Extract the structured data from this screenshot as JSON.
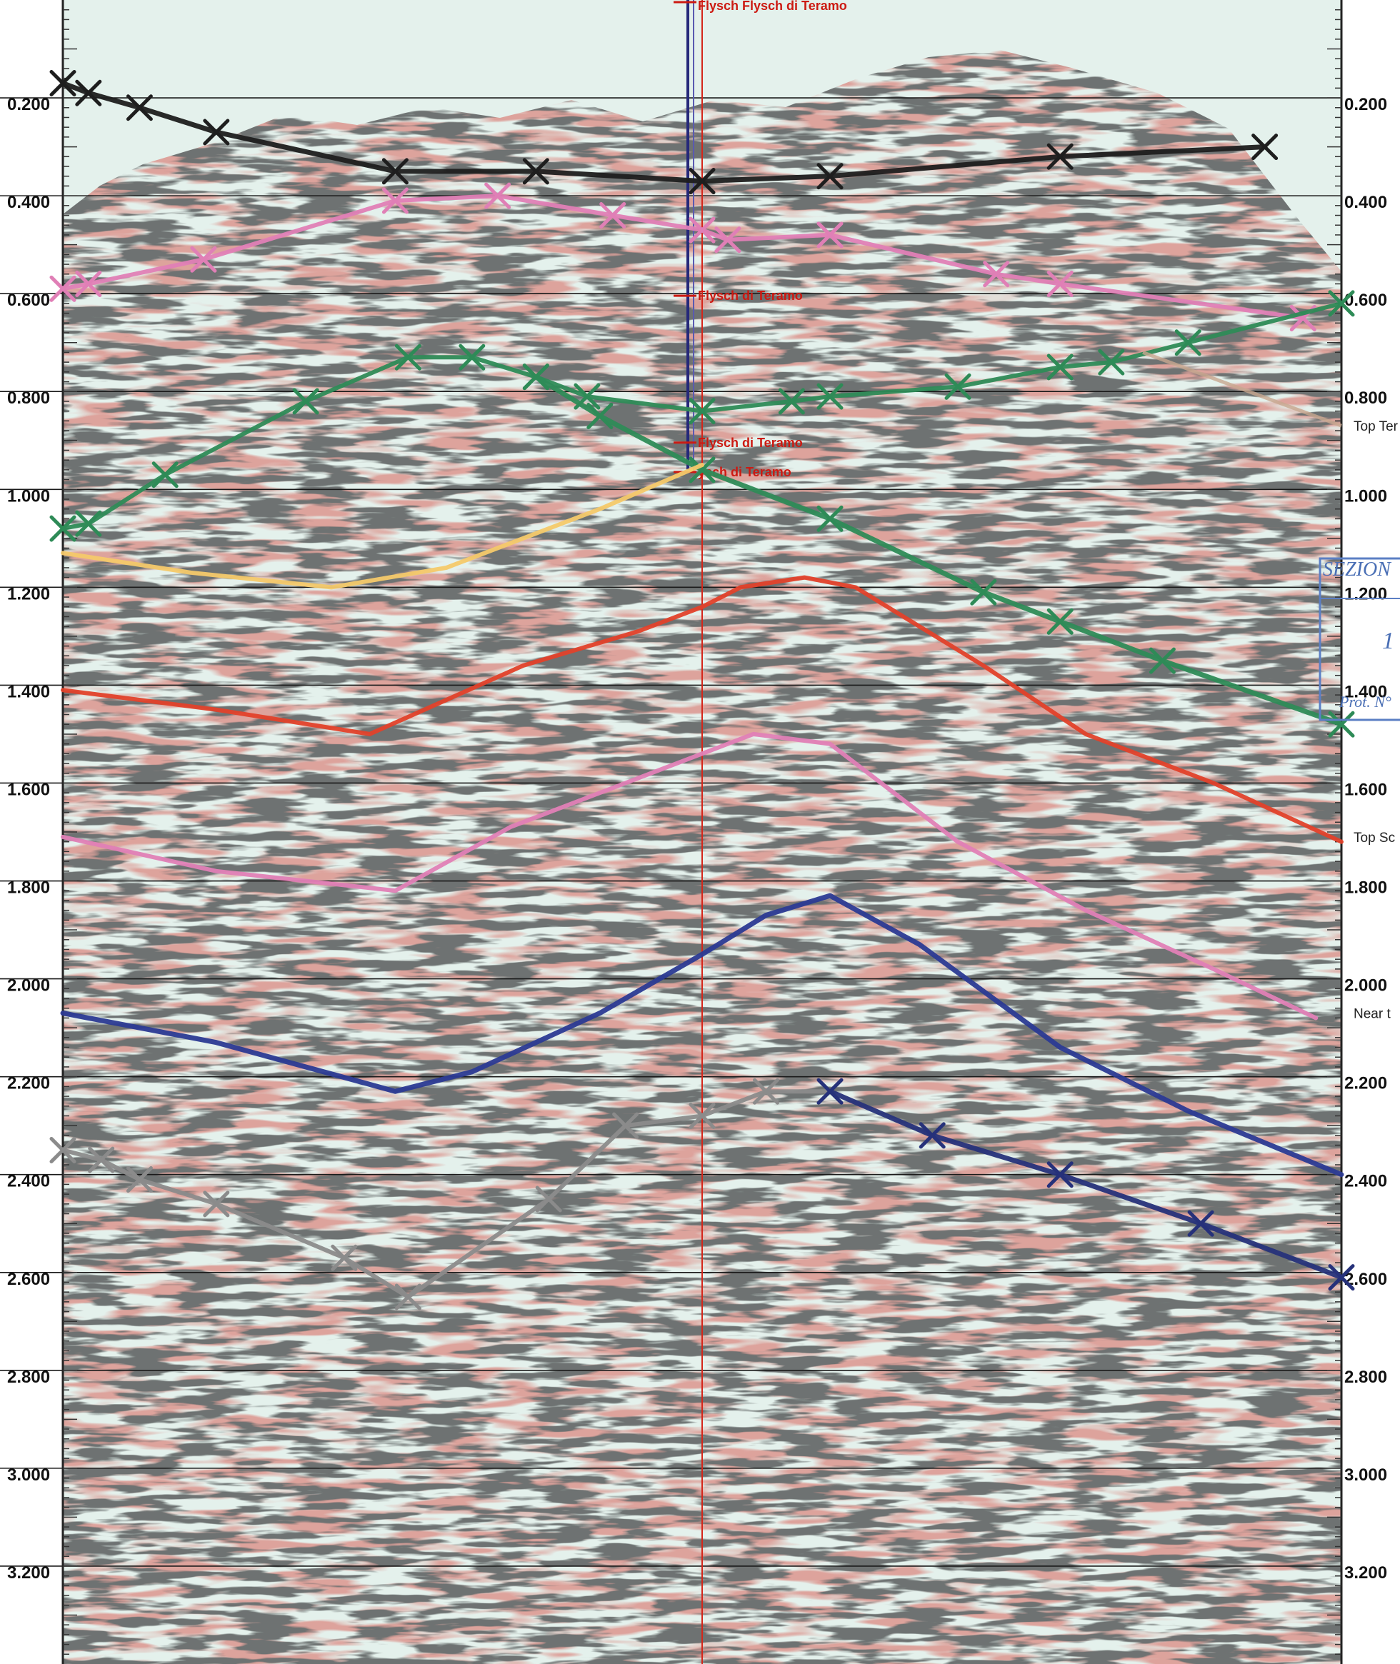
{
  "chart_data": {
    "type": "line",
    "title": "",
    "xlabel": "",
    "ylabel": "",
    "y_unit": "two-way time (s)",
    "ylim": [
      0.0,
      3.4
    ],
    "xlim": [
      0,
      1
    ],
    "y_reversed": true,
    "y_ticks": [
      "0.200",
      "0.400",
      "0.600",
      "0.800",
      "1.000",
      "1.200",
      "1.400",
      "1.600",
      "1.800",
      "2.000",
      "2.200",
      "2.400",
      "2.600",
      "2.800",
      "3.000",
      "3.200"
    ],
    "grid": true,
    "well": {
      "x": 0.5,
      "labels": [
        {
          "text": "Flysch Flysch di Teramo",
          "y": 0.0
        },
        {
          "text": "Flysch di Teramo",
          "y": 0.6
        },
        {
          "text": "Flysch di Teramo",
          "y": 0.9
        },
        {
          "text": "ysch di Teramo",
          "y": 0.96
        }
      ]
    },
    "right_annotations": [
      {
        "text": "Top Ter",
        "y": 0.87
      },
      {
        "text": "Top Sc",
        "y": 1.71
      },
      {
        "text": "Near t",
        "y": 2.07
      }
    ],
    "stamp": {
      "lines": [
        "SEZION",
        "1",
        "Prot. N°"
      ]
    },
    "series": [
      {
        "color": "#1e1e1e",
        "markers": "x",
        "x": [
          0.0,
          0.02,
          0.06,
          0.12,
          0.26,
          0.37,
          0.5,
          0.6,
          0.78,
          0.94
        ],
        "y": [
          0.17,
          0.19,
          0.22,
          0.27,
          0.35,
          0.35,
          0.37,
          0.36,
          0.32,
          0.3
        ]
      },
      {
        "color": "#e07fb6",
        "markers": "x",
        "x": [
          0.0,
          0.02,
          0.11,
          0.26,
          0.34,
          0.43,
          0.5,
          0.52,
          0.6,
          0.73,
          0.78,
          0.97
        ],
        "y": [
          0.59,
          0.58,
          0.53,
          0.41,
          0.4,
          0.44,
          0.47,
          0.49,
          0.48,
          0.56,
          0.58,
          0.65
        ]
      },
      {
        "color": "#2e8b57",
        "markers": "x",
        "x": [
          0.0,
          0.02,
          0.08,
          0.19,
          0.27,
          0.32,
          0.37,
          0.41,
          0.5,
          0.57,
          0.6,
          0.7,
          0.78,
          0.82,
          0.88,
          1.0
        ],
        "y": [
          1.08,
          1.07,
          0.97,
          0.82,
          0.73,
          0.73,
          0.77,
          0.81,
          0.84,
          0.82,
          0.81,
          0.79,
          0.75,
          0.74,
          0.7,
          0.62
        ]
      },
      {
        "color": "#2e8b57",
        "markers": "x",
        "x": [
          0.37,
          0.42,
          0.5,
          0.6,
          0.72,
          0.78,
          0.86,
          1.0
        ],
        "y": [
          0.77,
          0.85,
          0.96,
          1.06,
          1.21,
          1.27,
          1.35,
          1.48
        ]
      },
      {
        "color": "#f4c96a",
        "markers": "none",
        "x": [
          0.0,
          0.1,
          0.21,
          0.3,
          0.42,
          0.5
        ],
        "y": [
          1.13,
          1.17,
          1.2,
          1.16,
          1.04,
          0.95
        ]
      },
      {
        "color": "#e1412a",
        "markers": "none",
        "x": [
          0.0,
          0.12,
          0.24,
          0.36,
          0.45,
          0.5,
          0.53,
          0.58,
          0.62,
          0.72,
          0.8,
          0.9,
          1.0
        ],
        "y": [
          1.41,
          1.45,
          1.5,
          1.36,
          1.29,
          1.24,
          1.2,
          1.18,
          1.2,
          1.36,
          1.5,
          1.6,
          1.72
        ]
      },
      {
        "color": "#e07fb6",
        "markers": "none",
        "x": [
          0.0,
          0.12,
          0.26,
          0.35,
          0.45,
          0.54,
          0.6,
          0.7,
          0.8,
          0.9,
          0.98
        ],
        "y": [
          1.71,
          1.78,
          1.82,
          1.69,
          1.59,
          1.5,
          1.52,
          1.72,
          1.86,
          1.98,
          2.08
        ]
      },
      {
        "color": "#2b3a93",
        "markers": "none",
        "x": [
          0.0,
          0.12,
          0.26,
          0.32,
          0.42,
          0.5,
          0.55,
          0.6,
          0.67,
          0.78,
          0.88,
          1.0
        ],
        "y": [
          2.07,
          2.13,
          2.23,
          2.19,
          2.07,
          1.95,
          1.87,
          1.83,
          1.93,
          2.14,
          2.27,
          2.4
        ]
      },
      {
        "color": "#8b8b8b",
        "markers": "x",
        "x": [
          0.0,
          0.03,
          0.06,
          0.12,
          0.22,
          0.27,
          0.38,
          0.44,
          0.5,
          0.55,
          0.6
        ],
        "y": [
          2.35,
          2.37,
          2.41,
          2.46,
          2.57,
          2.65,
          2.45,
          2.3,
          2.28,
          2.23,
          2.23
        ]
      },
      {
        "color": "#26317a",
        "markers": "x",
        "x": [
          0.6,
          0.68,
          0.78,
          0.89,
          1.0
        ],
        "y": [
          2.23,
          2.32,
          2.4,
          2.5,
          2.61
        ]
      }
    ]
  }
}
